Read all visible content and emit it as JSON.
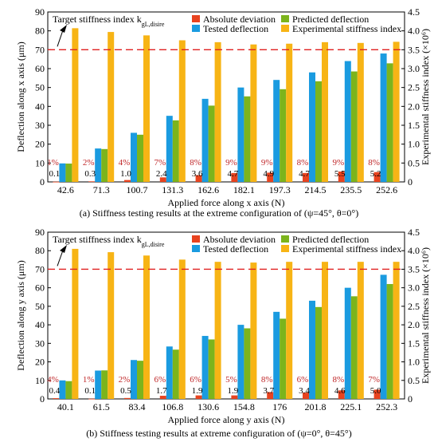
{
  "colors": {
    "absolute_deviation": "#e8431f",
    "tested_deflection": "#1a9be0",
    "predicted_deflection": "#7cb41c",
    "experimental_stiffness": "#f7b415",
    "target_line": "#e02020",
    "percent_label": "#c0282a"
  },
  "chart_data": [
    {
      "type": "bar",
      "caption": "(a) Stiffness testing results at the extreme configuration of (ψ=45°, θ=0°)",
      "xlabel": "Applied force along x axis (N)",
      "ylabel": "Deflection along x axis (μm)",
      "y2label": "Experimental stiffness index (×10⁶)",
      "ylim": [
        0,
        90
      ],
      "y2lim": [
        0,
        4.5
      ],
      "yticks": [
        "0",
        "10",
        "20",
        "30",
        "40",
        "50",
        "60",
        "70",
        "80",
        "90"
      ],
      "y2ticks": [
        "0",
        "0.5",
        "1.0",
        "1.5",
        "2.0",
        "2.5",
        "3.0",
        "3.5",
        "4.0",
        "4.5"
      ],
      "target": {
        "label": "Target stiffness index k",
        "label_sub": "gL,disire",
        "value": 3.5
      },
      "legend": [
        "Absolute deviation",
        "Predicted deflection",
        "Tested deflection",
        "Experimental stiffness index"
      ],
      "categories": [
        "42.6",
        "71.3",
        "100.7",
        "131.3",
        "162.6",
        "182.1",
        "197.3",
        "214.5",
        "235.5",
        "252.6"
      ],
      "series": [
        {
          "name": "Absolute deviation",
          "values": [
            0.1,
            0.3,
            1.0,
            2.4,
            3.6,
            4.7,
            4.9,
            4.7,
            5.5,
            5.2
          ]
        },
        {
          "name": "Tested deflection",
          "values": [
            9.8,
            17.7,
            26,
            35,
            44,
            50,
            54,
            58,
            64,
            68
          ]
        },
        {
          "name": "Predicted deflection",
          "values": [
            9.7,
            17.4,
            25,
            32.6,
            40.4,
            45.3,
            49.1,
            53.3,
            58.5,
            62.8
          ]
        },
        {
          "name": "Experimental stiffness index",
          "values": [
            4.07,
            3.97,
            3.88,
            3.75,
            3.7,
            3.64,
            3.66,
            3.7,
            3.68,
            3.71
          ]
        }
      ],
      "deviation_labels": [
        "0.1",
        "0.3",
        "1.0",
        "2.4",
        "3.6",
        "4.7",
        "4.9",
        "4.7",
        "5.5",
        "5.2"
      ],
      "percent_labels": [
        "1%",
        "2%",
        "4%",
        "7%",
        "8%",
        "9%",
        "9%",
        "8%",
        "9%",
        "8%"
      ]
    },
    {
      "type": "bar",
      "caption": "(b) Stiffness testing results at extreme configuration of (ψ=0°, θ=45°)",
      "xlabel": "Applied force along y axis (N)",
      "ylabel": "Deflection along y axis (μm)",
      "y2label": "Experimental stiffness index (×10⁶)",
      "ylim": [
        0,
        90
      ],
      "y2lim": [
        0,
        4.5
      ],
      "yticks": [
        "0",
        "10",
        "20",
        "30",
        "40",
        "50",
        "60",
        "70",
        "80",
        "90"
      ],
      "y2ticks": [
        "0",
        "0.5",
        "1.0",
        "1.5",
        "2.0",
        "2.5",
        "3.0",
        "3.5",
        "4.0",
        "4.5"
      ],
      "target": {
        "label": "Target stiffness index k",
        "label_sub": "gL,disire",
        "value": 3.5
      },
      "legend": [
        "Absolute deviation",
        "Predicted deflection",
        "Tested deflection",
        "Experimental stiffness index"
      ],
      "categories": [
        "40.1",
        "61.5",
        "83.4",
        "106.8",
        "130.6",
        "154.8",
        "176",
        "201.8",
        "225.1",
        "252.3"
      ],
      "series": [
        {
          "name": "Absolute deviation",
          "values": [
            0.4,
            0.1,
            0.5,
            1.7,
            1.9,
            1.9,
            3.7,
            3.4,
            4.6,
            5.0
          ]
        },
        {
          "name": "Tested deflection",
          "values": [
            10,
            15.3,
            21,
            28.3,
            34,
            40,
            47,
            53,
            60,
            67
          ]
        },
        {
          "name": "Predicted deflection",
          "values": [
            9.6,
            15.4,
            20.6,
            26.6,
            32.1,
            38.1,
            43.3,
            49.6,
            55.4,
            62
          ]
        },
        {
          "name": "Experimental stiffness index",
          "values": [
            4.05,
            3.96,
            3.87,
            3.76,
            3.7,
            3.68,
            3.7,
            3.7,
            3.7,
            3.7
          ]
        }
      ],
      "deviation_labels": [
        "0.4",
        "0.1",
        "0.5",
        "1.7",
        "1.9",
        "1.9",
        "3.7",
        "3.4",
        "4.6",
        "5.0"
      ],
      "percent_labels": [
        "4%",
        "1%",
        "2%",
        "6%",
        "6%",
        "5%",
        "8%",
        "6%",
        "8%",
        "7%"
      ]
    }
  ]
}
